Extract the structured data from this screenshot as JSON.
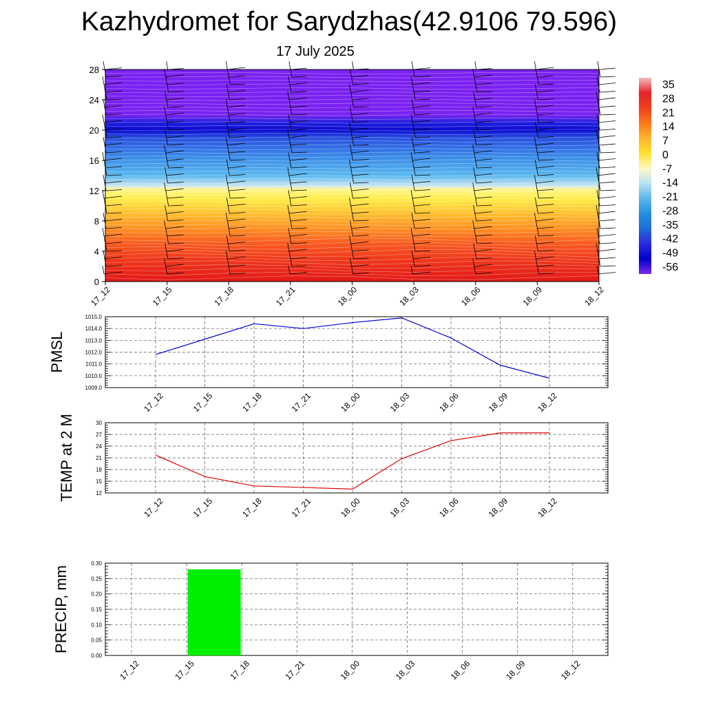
{
  "header": {
    "title": "Kazhydromet for Sarydzhas(42.9106 79.596)",
    "subtitle": "17 July 2025"
  },
  "chart_data": [
    {
      "type": "heatmap",
      "title": "Kazhydromet for Sarydzhas(42.9106 79.596)",
      "subtitle": "17 July 2025",
      "x_ticks": [
        "17_12",
        "17_15",
        "17_18",
        "17_21",
        "18_00",
        "18_03",
        "18_06",
        "18_09",
        "18_12"
      ],
      "y_ticks": [
        0,
        4,
        8,
        12,
        16,
        20,
        24,
        28
      ],
      "ylim": [
        0,
        28
      ],
      "value_description": "temperature contours with wind barbs",
      "colorbar_labels": [
        "35",
        "28",
        "21",
        "14",
        "7",
        "0",
        "-7",
        "-14",
        "-21",
        "-28",
        "-35",
        "-42",
        "-49",
        "-56"
      ],
      "colorbar_range": [
        -60,
        38
      ],
      "colorbar_colors": [
        "#f2bcbc",
        "#e4232a",
        "#f0401a",
        "#ff7a1a",
        "#ffb52b",
        "#ffe030",
        "#fff9c4",
        "#b8e2f2",
        "#5ab8ea",
        "#2390e0",
        "#1f6cd8",
        "#2a2ae0",
        "#0000cc",
        "#7b2be8"
      ],
      "temperature_zones": [
        {
          "top_km": 28,
          "bottom_km": 21.5,
          "color": "#7a22f0"
        },
        {
          "top_km": 21.5,
          "bottom_km": 19.5,
          "color": "#1010d8"
        },
        {
          "top_km": 19.5,
          "bottom_km": 16,
          "color": "#2a60e0"
        },
        {
          "top_km": 16,
          "bottom_km": 12.3,
          "color": "#40a8ec"
        },
        {
          "top_km": 12.3,
          "bottom_km": 10,
          "color": "#fff06a"
        },
        {
          "top_km": 10,
          "bottom_km": 7,
          "color": "#ffb830"
        },
        {
          "top_km": 7,
          "bottom_km": 3,
          "color": "#f46024"
        },
        {
          "top_km": 3,
          "bottom_km": 0,
          "color": "#e6201c"
        }
      ],
      "wind_barb_levels_km": [
        1,
        2,
        3,
        4,
        5,
        6,
        7,
        8,
        9,
        10,
        11,
        12,
        13,
        14,
        15,
        16,
        17,
        18,
        19,
        20,
        21,
        22,
        23,
        24,
        25,
        26,
        27,
        28
      ]
    },
    {
      "type": "line",
      "ylabel": "PMSL",
      "x": [
        "17_12",
        "17_15",
        "17_18",
        "17_21",
        "18_00",
        "18_03",
        "18_06",
        "18_09",
        "18_12"
      ],
      "y_ticks": [
        "1009.0",
        "1010.0",
        "1011.0",
        "1012.0",
        "1013.0",
        "1014.0",
        "1015.0"
      ],
      "ylim": [
        1009,
        1015
      ],
      "grid": true,
      "series": [
        {
          "values": [
            1011.8,
            1013.1,
            1014.4,
            1014.0,
            1014.5,
            1014.9,
            1013.2,
            1010.9,
            1009.8
          ],
          "color": "#0000cc"
        }
      ]
    },
    {
      "type": "line",
      "ylabel": "TEMP at 2 M",
      "x": [
        "17_12",
        "17_15",
        "17_18",
        "17_21",
        "18_00",
        "18_03",
        "18_06",
        "18_09",
        "18_12"
      ],
      "y_ticks": [
        "12",
        "15",
        "18",
        "21",
        "24",
        "27",
        "30"
      ],
      "ylim": [
        12,
        30
      ],
      "grid": true,
      "series": [
        {
          "values": [
            21.7,
            16.2,
            13.8,
            13.4,
            13.0,
            20.8,
            25.4,
            27.4,
            27.4
          ],
          "color": "#dd0000"
        }
      ]
    },
    {
      "type": "bar",
      "ylabel": "PRECIP, mm",
      "categories": [
        "17_12",
        "17_15",
        "17_18",
        "17_21",
        "18_00",
        "18_03",
        "18_06",
        "18_09",
        "18_12"
      ],
      "y_ticks": [
        "0.00",
        "0.05",
        "0.10",
        "0.15",
        "0.20",
        "0.25",
        "0.30"
      ],
      "ylim": [
        0,
        0.3
      ],
      "values": [
        0,
        0.28,
        0,
        0,
        0,
        0,
        0,
        0,
        0
      ],
      "grid": true,
      "bar_color": "#00ee00"
    }
  ]
}
